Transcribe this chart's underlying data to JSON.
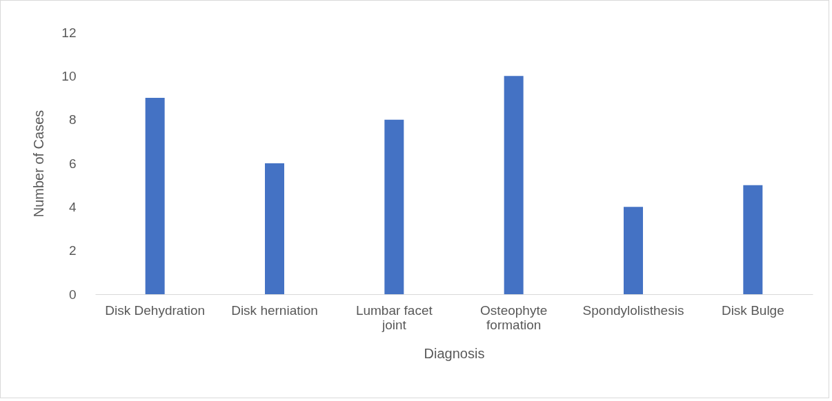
{
  "chart_data": {
    "type": "bar",
    "xlabel": "Diagnosis",
    "ylabel": "Number of Cases",
    "categories": [
      "Disk Dehydration",
      "Disk herniation",
      "Lumbar facet joint",
      "Osteophyte formation",
      "Spondylolisthesis",
      "Disk Bulge"
    ],
    "values": [
      9,
      6,
      8,
      10,
      4,
      5
    ],
    "color": "#4472c4",
    "ylim": [
      0,
      12
    ],
    "yticks": [
      0,
      2,
      4,
      6,
      8,
      10,
      12
    ],
    "grid": false
  }
}
